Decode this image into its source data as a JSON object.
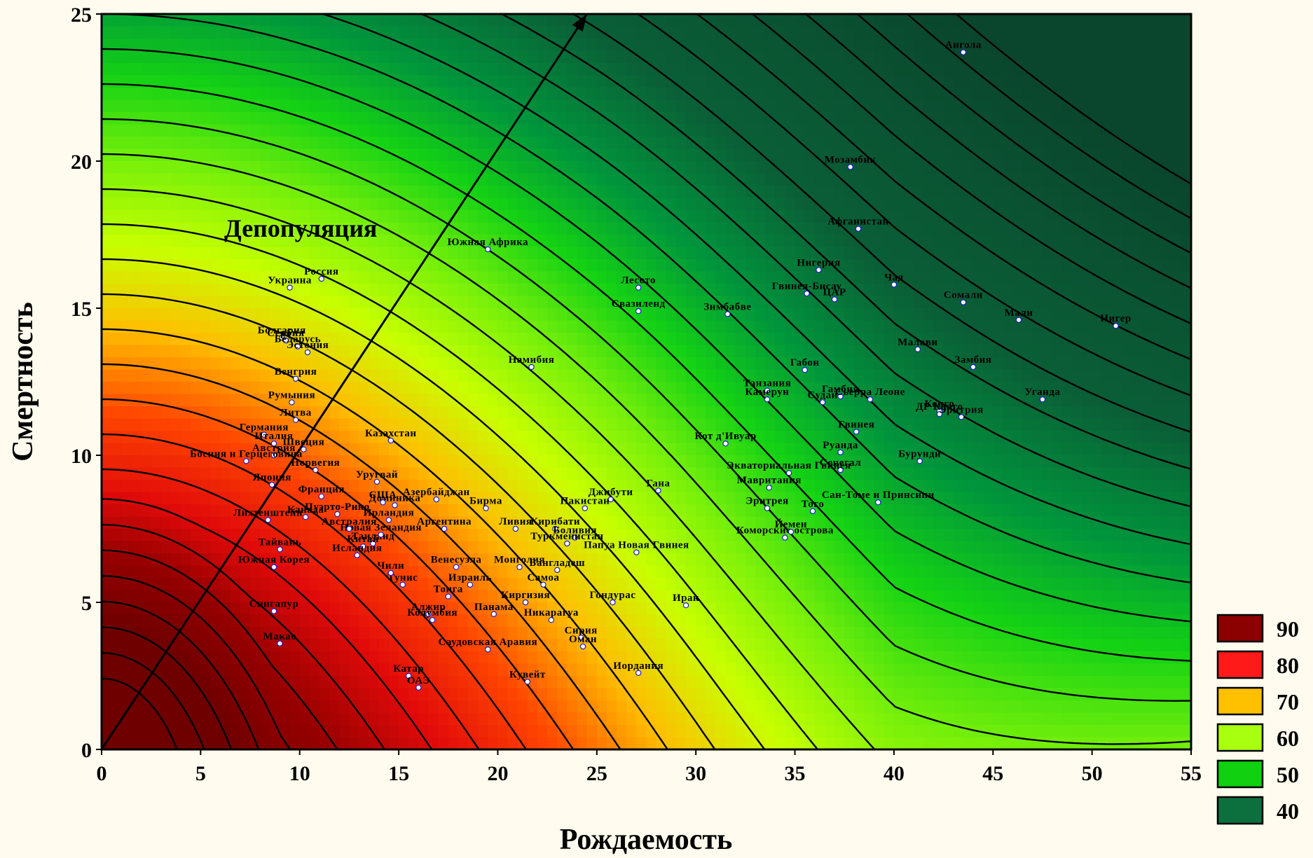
{
  "chart_data": {
    "type": "contour-scatter",
    "xlabel": "Рождаемость",
    "ylabel": "Смертность",
    "xlim": [
      0,
      55
    ],
    "ylim": [
      0,
      25
    ],
    "xticks": [
      "0",
      "5",
      "10",
      "15",
      "20",
      "25",
      "30",
      "35",
      "40",
      "45",
      "50",
      "55"
    ],
    "yticks": [
      "0",
      "5",
      "10",
      "15",
      "20",
      "25"
    ],
    "annotation": "Депопуляция",
    "legend": [
      {
        "label": "90",
        "color": "#8b0000"
      },
      {
        "label": "80",
        "color": "#ff1a1a"
      },
      {
        "label": "70",
        "color": "#ffc000"
      },
      {
        "label": "60",
        "color": "#a8ff10"
      },
      {
        "label": "50",
        "color": "#10d010"
      },
      {
        "label": "40",
        "color": "#0b6f3e"
      }
    ],
    "arrow": {
      "from": [
        0,
        0
      ],
      "to": [
        24.5,
        25
      ]
    },
    "points": [
      {
        "name": "Ангола",
        "x": 43.5,
        "y": 23.7
      },
      {
        "name": "Мозамбик",
        "x": 37.8,
        "y": 19.8
      },
      {
        "name": "Афганистан",
        "x": 38.2,
        "y": 17.7
      },
      {
        "name": "Южная Африка",
        "x": 19.5,
        "y": 17.0
      },
      {
        "name": "Нигерия",
        "x": 36.2,
        "y": 16.3
      },
      {
        "name": "Чад",
        "x": 40.0,
        "y": 15.8
      },
      {
        "name": "Гвинея-Бисау",
        "x": 35.6,
        "y": 15.5
      },
      {
        "name": "ЦАР",
        "x": 37.0,
        "y": 15.3
      },
      {
        "name": "Сомали",
        "x": 43.5,
        "y": 15.2
      },
      {
        "name": "Лесото",
        "x": 27.1,
        "y": 15.7
      },
      {
        "name": "Свазиленд",
        "x": 27.1,
        "y": 14.9
      },
      {
        "name": "Зимбабве",
        "x": 31.6,
        "y": 14.8
      },
      {
        "name": "Мали",
        "x": 46.3,
        "y": 14.6
      },
      {
        "name": "Нигер",
        "x": 51.2,
        "y": 14.4
      },
      {
        "name": "Малави",
        "x": 41.2,
        "y": 13.6
      },
      {
        "name": "Намибия",
        "x": 21.7,
        "y": 13.0
      },
      {
        "name": "Габон",
        "x": 35.5,
        "y": 12.9
      },
      {
        "name": "Замбия",
        "x": 44.0,
        "y": 13.0
      },
      {
        "name": "Танзания",
        "x": 33.6,
        "y": 12.2
      },
      {
        "name": "Камерун",
        "x": 33.6,
        "y": 11.9
      },
      {
        "name": "Гамбия",
        "x": 37.3,
        "y": 12.0
      },
      {
        "name": "Сьерра Леоне",
        "x": 38.8,
        "y": 11.9
      },
      {
        "name": "Судан",
        "x": 36.4,
        "y": 11.8
      },
      {
        "name": "Уганда",
        "x": 47.5,
        "y": 11.9
      },
      {
        "name": "Конго",
        "x": 42.3,
        "y": 11.5
      },
      {
        "name": "ДР Конго",
        "x": 42.3,
        "y": 11.4
      },
      {
        "name": "Эритрия",
        "x": 43.4,
        "y": 11.3
      },
      {
        "name": "Гвинея",
        "x": 38.1,
        "y": 10.8
      },
      {
        "name": "Кот д'Ивуар",
        "x": 31.5,
        "y": 10.4
      },
      {
        "name": "Руанда",
        "x": 37.3,
        "y": 10.1
      },
      {
        "name": "Бурунди",
        "x": 41.3,
        "y": 9.8
      },
      {
        "name": "Сенегал",
        "x": 37.3,
        "y": 9.5
      },
      {
        "name": "Экваториальная Гвинея",
        "x": 34.7,
        "y": 9.4
      },
      {
        "name": "Гана",
        "x": 28.1,
        "y": 8.8
      },
      {
        "name": "Мавритания",
        "x": 33.7,
        "y": 8.9
      },
      {
        "name": "Сан-Томе и Принсипи",
        "x": 39.2,
        "y": 8.4
      },
      {
        "name": "Эритрея",
        "x": 33.6,
        "y": 8.2
      },
      {
        "name": "Того",
        "x": 35.9,
        "y": 8.1
      },
      {
        "name": "Коморские острова",
        "x": 34.5,
        "y": 7.2
      },
      {
        "name": "Йемен",
        "x": 34.8,
        "y": 7.4
      },
      {
        "name": "Джибути",
        "x": 25.7,
        "y": 8.5
      },
      {
        "name": "Пакистан",
        "x": 24.4,
        "y": 8.2
      },
      {
        "name": "Кирибати",
        "x": 22.9,
        "y": 7.5
      },
      {
        "name": "Боливия",
        "x": 23.9,
        "y": 7.2
      },
      {
        "name": "Туркменистан",
        "x": 23.5,
        "y": 7.0
      },
      {
        "name": "Папуа Новая Гвинея",
        "x": 27.0,
        "y": 6.7
      },
      {
        "name": "Ирак",
        "x": 29.5,
        "y": 4.9
      },
      {
        "name": "Гондурас",
        "x": 25.8,
        "y": 5.0
      },
      {
        "name": "Никарагуа",
        "x": 22.7,
        "y": 4.4
      },
      {
        "name": "Сирия",
        "x": 24.2,
        "y": 3.8
      },
      {
        "name": "Оман",
        "x": 24.3,
        "y": 3.5
      },
      {
        "name": "Иордания",
        "x": 27.1,
        "y": 2.6
      },
      {
        "name": "Кувейт",
        "x": 21.5,
        "y": 2.3
      },
      {
        "name": "Саудовская Аравия",
        "x": 19.5,
        "y": 3.4
      },
      {
        "name": "Бангладеш",
        "x": 23.0,
        "y": 6.1
      },
      {
        "name": "Самоа",
        "x": 22.3,
        "y": 5.6
      },
      {
        "name": "Киргизия",
        "x": 21.4,
        "y": 5.0
      },
      {
        "name": "Панама",
        "x": 19.8,
        "y": 4.6
      },
      {
        "name": "Израиль",
        "x": 18.6,
        "y": 5.6
      },
      {
        "name": "Тонга",
        "x": 17.5,
        "y": 5.2
      },
      {
        "name": "Алжир",
        "x": 16.5,
        "y": 4.6
      },
      {
        "name": "Колумбия",
        "x": 16.7,
        "y": 4.4
      },
      {
        "name": "Тунис",
        "x": 15.2,
        "y": 5.6
      },
      {
        "name": "Катар",
        "x": 15.5,
        "y": 2.5
      },
      {
        "name": "ОАЭ",
        "x": 16.0,
        "y": 2.1
      },
      {
        "name": "Казахстан",
        "x": 14.6,
        "y": 10.5
      },
      {
        "name": "Азербайджан",
        "x": 16.9,
        "y": 8.5
      },
      {
        "name": "Бирма",
        "x": 19.4,
        "y": 8.2
      },
      {
        "name": "Доминика",
        "x": 14.8,
        "y": 8.3
      },
      {
        "name": "Ливия",
        "x": 20.9,
        "y": 7.5
      },
      {
        "name": "Аргентина",
        "x": 17.3,
        "y": 7.5
      },
      {
        "name": "Венесуэла",
        "x": 17.9,
        "y": 6.2
      },
      {
        "name": "Монголия",
        "x": 21.1,
        "y": 6.2
      },
      {
        "name": "Таиланд",
        "x": 13.7,
        "y": 7.0
      },
      {
        "name": "Новая Зеландия",
        "x": 14.1,
        "y": 7.3
      },
      {
        "name": "Чили",
        "x": 14.6,
        "y": 6.0
      },
      {
        "name": "Уругвай",
        "x": 13.9,
        "y": 9.1
      },
      {
        "name": "США",
        "x": 14.2,
        "y": 8.4
      },
      {
        "name": "Пуэрто-Рико",
        "x": 11.9,
        "y": 8.0
      },
      {
        "name": "Ирландия",
        "x": 14.5,
        "y": 7.8
      },
      {
        "name": "Тайвань",
        "x": 9.0,
        "y": 6.8
      },
      {
        "name": "Южная Корея",
        "x": 8.7,
        "y": 6.2
      },
      {
        "name": "Китай",
        "x": 13.2,
        "y": 6.9
      },
      {
        "name": "Сингапур",
        "x": 8.7,
        "y": 4.7
      },
      {
        "name": "Макао",
        "x": 9.0,
        "y": 3.6
      },
      {
        "name": "Украина",
        "x": 9.5,
        "y": 15.7
      },
      {
        "name": "Россия",
        "x": 11.1,
        "y": 16.0
      },
      {
        "name": "Болгария",
        "x": 9.1,
        "y": 14.0
      },
      {
        "name": "Сербия",
        "x": 9.3,
        "y": 13.9
      },
      {
        "name": "Беларусь",
        "x": 9.9,
        "y": 13.7
      },
      {
        "name": "Эстония",
        "x": 10.4,
        "y": 13.5
      },
      {
        "name": "Венгрия",
        "x": 9.8,
        "y": 12.6
      },
      {
        "name": "Румыния",
        "x": 9.6,
        "y": 11.8
      },
      {
        "name": "Литва",
        "x": 9.8,
        "y": 11.2
      },
      {
        "name": "Германия",
        "x": 8.2,
        "y": 10.7
      },
      {
        "name": "Италия",
        "x": 8.7,
        "y": 10.4
      },
      {
        "name": "Швеция",
        "x": 10.2,
        "y": 10.2
      },
      {
        "name": "Австрия",
        "x": 8.7,
        "y": 10.0
      },
      {
        "name": "Норвегия",
        "x": 10.8,
        "y": 9.5
      },
      {
        "name": "Босния и Герцеговина",
        "x": 7.3,
        "y": 9.8
      },
      {
        "name": "Франция",
        "x": 11.1,
        "y": 8.6
      },
      {
        "name": "Лихтенштейн",
        "x": 8.4,
        "y": 7.8
      },
      {
        "name": "Канада",
        "x": 10.3,
        "y": 7.9
      },
      {
        "name": "Австралия",
        "x": 12.5,
        "y": 7.5
      },
      {
        "name": "Япония",
        "x": 8.6,
        "y": 9.0
      },
      {
        "name": "Исландия",
        "x": 12.9,
        "y": 6.6
      }
    ]
  }
}
